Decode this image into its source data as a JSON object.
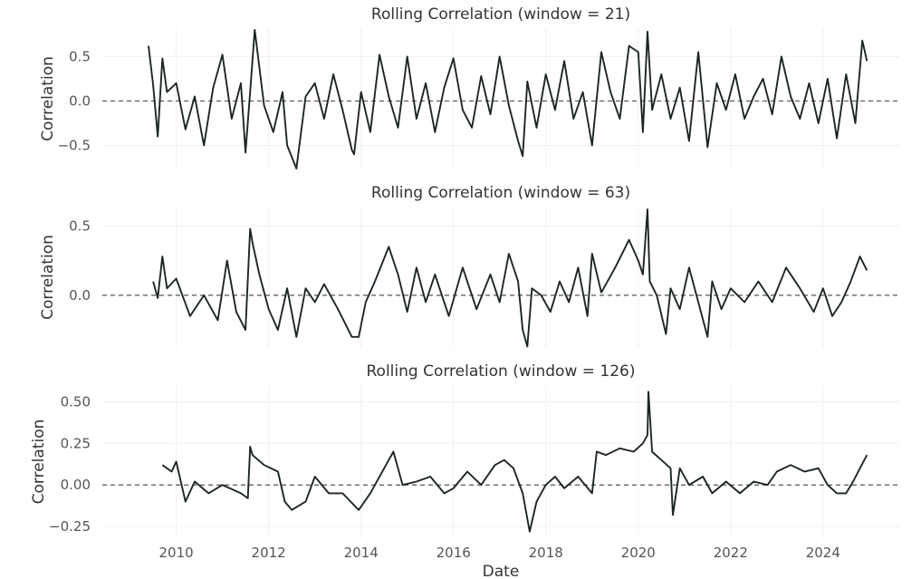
{
  "chart_data": [
    {
      "type": "line",
      "title": "Rolling Correlation (window = 21)",
      "xlabel": "",
      "ylabel": "Correlation",
      "xlim": [
        2008.4,
        2025.65
      ],
      "ylim": [
        -0.77,
        0.82
      ],
      "yticks": [
        0.5,
        0.0,
        -0.5
      ],
      "ytick_labels": [
        "0.5",
        "0.0",
        "−0.5"
      ],
      "xticks": [
        2010,
        2012,
        2014,
        2016,
        2018,
        2020,
        2022,
        2024
      ],
      "xtick_labels": [
        "",
        "",
        "",
        "",
        "",
        "",
        "",
        ""
      ],
      "grid": true,
      "reference_line": {
        "y": 0.0,
        "style": "dashed"
      },
      "series": [
        {
          "x": [
            2009.4,
            2009.5,
            2009.6,
            2009.7,
            2009.8,
            2010.0,
            2010.2,
            2010.4,
            2010.6,
            2010.8,
            2011.0,
            2011.2,
            2011.4,
            2011.5,
            2011.6,
            2011.7,
            2011.9,
            2012.1,
            2012.3,
            2012.4,
            2012.6,
            2012.8,
            2013.0,
            2013.2,
            2013.4,
            2013.6,
            2013.8,
            2013.85,
            2014.0,
            2014.2,
            2014.4,
            2014.6,
            2014.8,
            2015.0,
            2015.2,
            2015.4,
            2015.6,
            2015.8,
            2016.0,
            2016.2,
            2016.4,
            2016.6,
            2016.8,
            2017.0,
            2017.2,
            2017.4,
            2017.5,
            2017.6,
            2017.8,
            2018.0,
            2018.2,
            2018.4,
            2018.6,
            2018.8,
            2019.0,
            2019.2,
            2019.4,
            2019.6,
            2019.8,
            2020.0,
            2020.1,
            2020.2,
            2020.3,
            2020.5,
            2020.7,
            2020.9,
            2021.1,
            2021.3,
            2021.5,
            2021.7,
            2021.9,
            2022.1,
            2022.3,
            2022.5,
            2022.7,
            2022.9,
            2023.1,
            2023.3,
            2023.5,
            2023.7,
            2023.9,
            2024.1,
            2024.3,
            2024.5,
            2024.7,
            2024.85,
            2024.95
          ],
          "y": [
            0.62,
            0.18,
            -0.4,
            0.48,
            0.1,
            0.2,
            -0.32,
            0.05,
            -0.5,
            0.15,
            0.52,
            -0.2,
            0.2,
            -0.58,
            0.1,
            0.8,
            -0.05,
            -0.35,
            0.1,
            -0.5,
            -0.76,
            0.05,
            0.2,
            -0.2,
            0.3,
            -0.1,
            -0.55,
            -0.6,
            0.1,
            -0.35,
            0.52,
            0.05,
            -0.3,
            0.5,
            -0.2,
            0.2,
            -0.35,
            0.15,
            0.48,
            -0.1,
            -0.3,
            0.28,
            -0.15,
            0.5,
            -0.05,
            -0.45,
            -0.62,
            0.22,
            -0.3,
            0.3,
            -0.1,
            0.45,
            -0.2,
            0.1,
            -0.5,
            0.55,
            0.1,
            -0.2,
            0.62,
            0.55,
            -0.35,
            0.78,
            -0.1,
            0.3,
            -0.2,
            0.15,
            -0.45,
            0.55,
            -0.52,
            0.2,
            -0.1,
            0.3,
            -0.2,
            0.05,
            0.25,
            -0.15,
            0.5,
            0.05,
            -0.2,
            0.2,
            -0.25,
            0.25,
            -0.42,
            0.3,
            -0.25,
            0.68,
            0.45
          ]
        }
      ]
    },
    {
      "type": "line",
      "title": "Rolling Correlation (window = 63)",
      "xlabel": "",
      "ylabel": "Correlation",
      "xlim": [
        2008.4,
        2025.65
      ],
      "ylim": [
        -0.38,
        0.64
      ],
      "yticks": [
        0.5,
        0.0
      ],
      "ytick_labels": [
        "0.5",
        "0.0"
      ],
      "xticks": [
        2010,
        2012,
        2014,
        2016,
        2018,
        2020,
        2022,
        2024
      ],
      "xtick_labels": [
        "",
        "",
        "",
        "",
        "",
        "",
        "",
        ""
      ],
      "grid": true,
      "reference_line": {
        "y": 0.0,
        "style": "dashed"
      },
      "series": [
        {
          "x": [
            2009.5,
            2009.6,
            2009.7,
            2009.8,
            2010.0,
            2010.3,
            2010.6,
            2010.9,
            2011.1,
            2011.3,
            2011.5,
            2011.6,
            2011.65,
            2011.8,
            2012.0,
            2012.2,
            2012.4,
            2012.6,
            2012.8,
            2013.0,
            2013.2,
            2013.5,
            2013.8,
            2013.95,
            2014.1,
            2014.3,
            2014.6,
            2014.8,
            2015.0,
            2015.2,
            2015.4,
            2015.6,
            2015.9,
            2016.2,
            2016.5,
            2016.8,
            2017.0,
            2017.2,
            2017.4,
            2017.5,
            2017.6,
            2017.7,
            2017.9,
            2018.1,
            2018.3,
            2018.5,
            2018.7,
            2018.9,
            2019.0,
            2019.2,
            2019.5,
            2019.8,
            2020.0,
            2020.1,
            2020.2,
            2020.25,
            2020.4,
            2020.6,
            2020.7,
            2020.9,
            2021.1,
            2021.3,
            2021.5,
            2021.6,
            2021.8,
            2022.0,
            2022.3,
            2022.6,
            2022.9,
            2023.2,
            2023.5,
            2023.8,
            2024.0,
            2024.2,
            2024.4,
            2024.6,
            2024.8,
            2024.95
          ],
          "y": [
            0.1,
            -0.02,
            0.28,
            0.05,
            0.12,
            -0.15,
            0.0,
            -0.18,
            0.25,
            -0.12,
            -0.25,
            0.48,
            0.38,
            0.15,
            -0.1,
            -0.25,
            0.05,
            -0.3,
            0.05,
            -0.05,
            0.08,
            -0.1,
            -0.3,
            -0.3,
            -0.05,
            0.1,
            0.35,
            0.15,
            -0.12,
            0.2,
            -0.05,
            0.15,
            -0.15,
            0.2,
            -0.1,
            0.15,
            -0.05,
            0.3,
            0.1,
            -0.25,
            -0.37,
            0.05,
            0.0,
            -0.12,
            0.1,
            -0.05,
            0.2,
            -0.15,
            0.3,
            0.02,
            0.2,
            0.4,
            0.25,
            0.15,
            0.62,
            0.1,
            0.0,
            -0.28,
            0.05,
            -0.1,
            0.2,
            -0.05,
            -0.3,
            0.1,
            -0.1,
            0.05,
            -0.05,
            0.1,
            -0.05,
            0.2,
            0.05,
            -0.12,
            0.05,
            -0.15,
            -0.05,
            0.1,
            0.28,
            0.18
          ]
        }
      ]
    },
    {
      "type": "line",
      "title": "Rolling Correlation (window = 126)",
      "xlabel": "Date",
      "ylabel": "Correlation",
      "xlim": [
        2008.4,
        2025.65
      ],
      "ylim": [
        -0.32,
        0.6
      ],
      "yticks": [
        0.5,
        0.25,
        0.0,
        -0.25
      ],
      "ytick_labels": [
        "0.50",
        "0.25",
        "0.00",
        "−0.25"
      ],
      "xticks": [
        2010,
        2012,
        2014,
        2016,
        2018,
        2020,
        2022,
        2024
      ],
      "xtick_labels": [
        "2010",
        "2012",
        "2014",
        "2016",
        "2018",
        "2020",
        "2022",
        "2024"
      ],
      "grid": true,
      "reference_line": {
        "y": 0.0,
        "style": "dashed"
      },
      "series": [
        {
          "x": [
            2009.7,
            2009.9,
            2010.0,
            2010.2,
            2010.4,
            2010.7,
            2011.0,
            2011.4,
            2011.55,
            2011.6,
            2011.65,
            2011.9,
            2012.2,
            2012.35,
            2012.5,
            2012.8,
            2013.0,
            2013.3,
            2013.6,
            2013.95,
            2014.2,
            2014.5,
            2014.7,
            2014.9,
            2015.2,
            2015.5,
            2015.8,
            2016.0,
            2016.3,
            2016.6,
            2016.9,
            2017.1,
            2017.3,
            2017.5,
            2017.65,
            2017.8,
            2018.0,
            2018.2,
            2018.4,
            2018.7,
            2019.0,
            2019.1,
            2019.3,
            2019.6,
            2019.9,
            2020.1,
            2020.2,
            2020.22,
            2020.3,
            2020.5,
            2020.7,
            2020.75,
            2020.9,
            2021.1,
            2021.4,
            2021.6,
            2021.9,
            2022.2,
            2022.5,
            2022.8,
            2023.0,
            2023.3,
            2023.6,
            2023.9,
            2024.1,
            2024.3,
            2024.5,
            2024.65,
            2024.8,
            2024.95
          ],
          "y": [
            0.12,
            0.08,
            0.14,
            -0.1,
            0.02,
            -0.05,
            0.0,
            -0.05,
            -0.08,
            0.23,
            0.18,
            0.12,
            0.08,
            -0.1,
            -0.15,
            -0.1,
            0.05,
            -0.05,
            -0.05,
            -0.15,
            -0.05,
            0.1,
            0.2,
            0.0,
            0.02,
            0.05,
            -0.05,
            -0.02,
            0.08,
            0.0,
            0.12,
            0.15,
            0.1,
            -0.05,
            -0.28,
            -0.1,
            0.0,
            0.05,
            -0.02,
            0.05,
            -0.05,
            0.2,
            0.18,
            0.22,
            0.2,
            0.25,
            0.3,
            0.56,
            0.2,
            0.15,
            0.1,
            -0.18,
            0.1,
            0.0,
            0.05,
            -0.05,
            0.02,
            -0.05,
            0.02,
            0.0,
            0.08,
            0.12,
            0.08,
            0.1,
            0.0,
            -0.05,
            -0.05,
            0.02,
            0.1,
            0.18
          ]
        }
      ]
    }
  ]
}
